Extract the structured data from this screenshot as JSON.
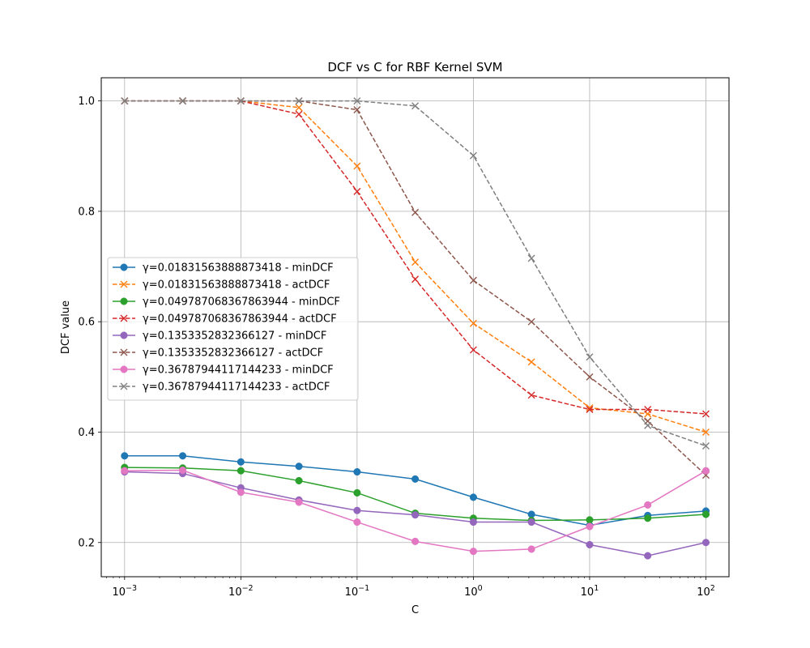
{
  "chart_data": {
    "type": "line",
    "title": "DCF vs C for RBF Kernel SVM",
    "xlabel": "C",
    "ylabel": "DCF value",
    "xscale": "log",
    "x": [
      0.001,
      0.00316,
      0.01,
      0.0316,
      0.1,
      0.316,
      1,
      3.16,
      10,
      31.6,
      100
    ],
    "xlim": [
      0.00063,
      158
    ],
    "ylim": [
      0.138,
      1.042
    ],
    "x_ticks": [
      {
        "value": 0.001,
        "base": "10",
        "exp": "−3"
      },
      {
        "value": 0.01,
        "base": "10",
        "exp": "−2"
      },
      {
        "value": 0.1,
        "base": "10",
        "exp": "−1"
      },
      {
        "value": 1,
        "base": "10",
        "exp": "0"
      },
      {
        "value": 10,
        "base": "10",
        "exp": "1"
      },
      {
        "value": 100,
        "base": "10",
        "exp": "2"
      }
    ],
    "y_ticks": [
      {
        "value": 0.2,
        "label": "0.2"
      },
      {
        "value": 0.4,
        "label": "0.4"
      },
      {
        "value": 0.6,
        "label": "0.6"
      },
      {
        "value": 0.8,
        "label": "0.8"
      },
      {
        "value": 1.0,
        "label": "1.0"
      }
    ],
    "grid": true,
    "legend_position": "center-left",
    "series": [
      {
        "name": "γ=0.01831563888873418 - minDCF",
        "color": "#1f77b4",
        "dashed": false,
        "marker": "circle",
        "values": [
          0.357,
          0.357,
          0.346,
          0.338,
          0.328,
          0.315,
          0.282,
          0.251,
          0.231,
          0.249,
          0.257
        ]
      },
      {
        "name": "γ=0.01831563888873418 - actDCF",
        "color": "#ff7f0e",
        "dashed": true,
        "marker": "x",
        "values": [
          1.0,
          1.0,
          1.0,
          0.988,
          0.882,
          0.708,
          0.597,
          0.527,
          0.444,
          0.433,
          0.4
        ]
      },
      {
        "name": "γ=0.049787068367863944 - minDCF",
        "color": "#2ca02c",
        "dashed": false,
        "marker": "circle",
        "values": [
          0.336,
          0.335,
          0.33,
          0.312,
          0.29,
          0.253,
          0.244,
          0.24,
          0.241,
          0.244,
          0.251
        ]
      },
      {
        "name": "γ=0.049787068367863944 - actDCF",
        "color": "#d62728",
        "dashed": true,
        "marker": "x",
        "values": [
          1.0,
          1.0,
          1.0,
          0.976,
          0.836,
          0.677,
          0.549,
          0.467,
          0.441,
          0.441,
          0.433
        ]
      },
      {
        "name": "γ=0.1353352832366127 - minDCF",
        "color": "#9467bd",
        "dashed": false,
        "marker": "circle",
        "values": [
          0.328,
          0.325,
          0.299,
          0.277,
          0.258,
          0.25,
          0.237,
          0.237,
          0.196,
          0.176,
          0.2
        ]
      },
      {
        "name": "γ=0.1353352832366127 - actDCF",
        "color": "#8c564b",
        "dashed": true,
        "marker": "x",
        "values": [
          1.0,
          1.0,
          1.0,
          1.0,
          0.984,
          0.798,
          0.675,
          0.6,
          0.5,
          0.42,
          0.322
        ]
      },
      {
        "name": "γ=0.36787944117144233 - minDCF",
        "color": "#e377c2",
        "dashed": false,
        "marker": "circle",
        "values": [
          0.33,
          0.331,
          0.291,
          0.273,
          0.237,
          0.202,
          0.184,
          0.188,
          0.229,
          0.268,
          0.33
        ]
      },
      {
        "name": "γ=0.36787944117144233 - actDCF",
        "color": "#7f7f7f",
        "dashed": true,
        "marker": "x",
        "values": [
          1.0,
          1.0,
          1.0,
          1.0,
          1.0,
          0.991,
          0.901,
          0.715,
          0.536,
          0.412,
          0.375
        ]
      }
    ]
  }
}
